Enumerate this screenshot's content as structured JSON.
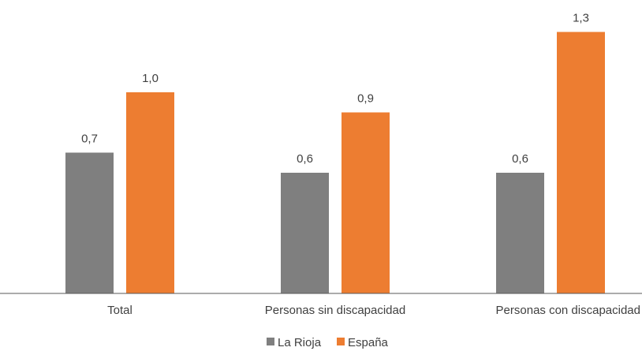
{
  "chart_data": {
    "type": "bar",
    "categories": [
      "Total",
      "Personas sin discapacidad",
      "Personas con discapacidad"
    ],
    "series": [
      {
        "name": "La Rioja",
        "values": [
          0.7,
          0.6,
          0.6
        ],
        "labels": [
          "0,7",
          "0,6",
          "0,6"
        ],
        "color": "#7f7f7f"
      },
      {
        "name": "España",
        "values": [
          1.0,
          0.9,
          1.3
        ],
        "labels": [
          "1,0",
          "0,9",
          "1,3"
        ],
        "color": "#ed7d31"
      }
    ],
    "title": "",
    "xlabel": "",
    "ylabel": "",
    "ylim": [
      0,
      1.3
    ],
    "grid": false,
    "legend": "bottom",
    "colors": {
      "axis": "#595959",
      "text": "#404040"
    }
  }
}
